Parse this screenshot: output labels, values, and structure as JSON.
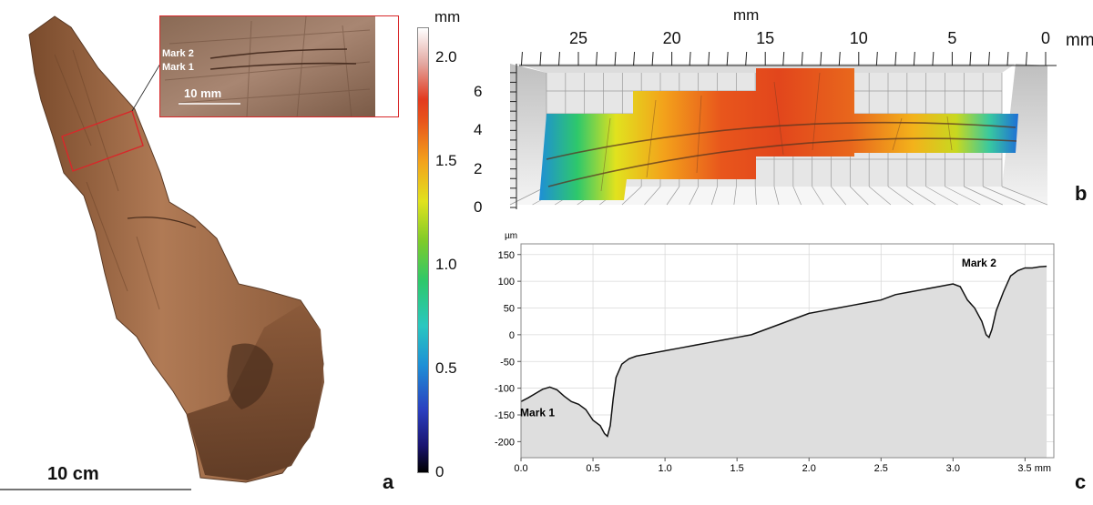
{
  "panel_a": {
    "letter": "a",
    "scale_bar_label": "10 cm",
    "inset": {
      "mark2_label": "Mark 2",
      "mark1_label": "Mark 1",
      "scale_label": "10 mm"
    }
  },
  "colorbar": {
    "unit": "mm",
    "ticks": [
      "2.0",
      "1.5",
      "1.0",
      "0.5",
      "0"
    ],
    "tick_values": [
      2.0,
      1.5,
      1.0,
      0.5,
      0.0
    ],
    "range": [
      0,
      2.15
    ]
  },
  "panel_b": {
    "letter": "b",
    "x_unit_top": "mm",
    "x_unit_right": "mm",
    "x_ticks": [
      "25",
      "20",
      "15",
      "10",
      "5",
      "0"
    ],
    "x_tick_values": [
      25,
      20,
      15,
      10,
      5,
      0
    ],
    "y_ticks": [
      "6",
      "4",
      "2",
      "0"
    ],
    "y_tick_values": [
      6,
      4,
      2,
      0
    ]
  },
  "panel_c": {
    "letter": "c"
  },
  "chart_data": {
    "type": "area",
    "title": "",
    "xlabel": "mm",
    "ylabel": "µm",
    "xlim": [
      0.0,
      3.7
    ],
    "ylim": [
      -230,
      170
    ],
    "x_ticks": [
      0.0,
      0.5,
      1.0,
      1.5,
      2.0,
      2.5,
      3.0,
      3.5
    ],
    "x_tick_labels": [
      "0.0",
      "0.5",
      "1.0",
      "1.5",
      "2.0",
      "2.5",
      "3.0",
      "3.5 mm"
    ],
    "y_ticks": [
      150,
      100,
      50,
      0,
      -50,
      -100,
      -150,
      -200
    ],
    "y_tick_labels": [
      "150",
      "100",
      "50",
      "0",
      "-50",
      "-100",
      "-150",
      "-200"
    ],
    "grid": true,
    "annotations": [
      {
        "text": "Mark 1",
        "x": 0.5,
        "y": -190
      },
      {
        "text": "Mark 2",
        "x": 3.25,
        "y": -5
      }
    ],
    "series": [
      {
        "name": "profile",
        "x": [
          0.0,
          0.05,
          0.1,
          0.15,
          0.2,
          0.25,
          0.3,
          0.35,
          0.4,
          0.45,
          0.5,
          0.55,
          0.58,
          0.6,
          0.62,
          0.64,
          0.66,
          0.7,
          0.75,
          0.8,
          0.9,
          1.0,
          1.1,
          1.2,
          1.3,
          1.4,
          1.5,
          1.6,
          1.7,
          1.8,
          1.9,
          2.0,
          2.1,
          2.2,
          2.3,
          2.4,
          2.5,
          2.6,
          2.7,
          2.8,
          2.9,
          3.0,
          3.05,
          3.1,
          3.15,
          3.2,
          3.23,
          3.25,
          3.27,
          3.3,
          3.35,
          3.4,
          3.45,
          3.5,
          3.55,
          3.6,
          3.65
        ],
        "y": [
          -125,
          -118,
          -110,
          -102,
          -98,
          -103,
          -115,
          -125,
          -130,
          -140,
          -160,
          -170,
          -185,
          -190,
          -170,
          -120,
          -80,
          -55,
          -45,
          -40,
          -35,
          -30,
          -25,
          -20,
          -15,
          -10,
          -5,
          0,
          10,
          20,
          30,
          40,
          45,
          50,
          55,
          60,
          65,
          75,
          80,
          85,
          90,
          95,
          90,
          65,
          50,
          25,
          0,
          -5,
          10,
          45,
          80,
          110,
          120,
          125,
          125,
          127,
          128
        ]
      }
    ]
  }
}
